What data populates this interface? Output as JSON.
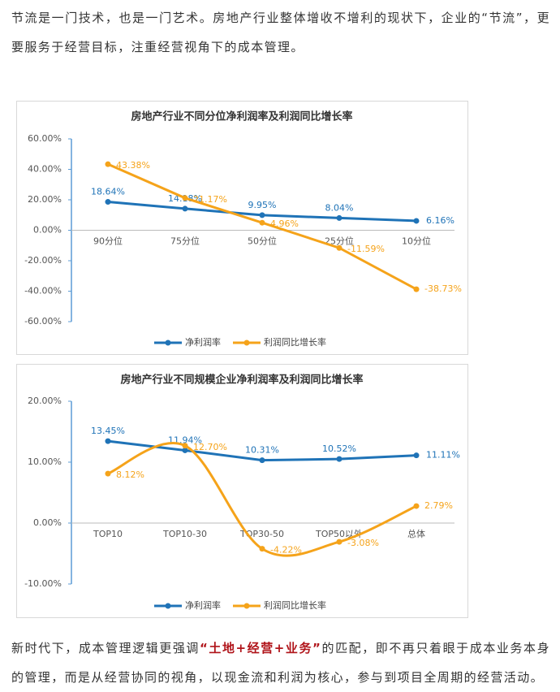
{
  "paragraphs": [
    {
      "text": "节流是一门技术，也是一门艺术。房地产行业整体增收不增利的现状下，企业的“节流”，更要服务于经营目标，注重经营视角下的成本管理。"
    },
    {
      "before": "新时代下，成本管理逻辑更强调",
      "highlight": "“土地+经营+业务”",
      "after": "的匹配，即不再只着眼于成本业务本身的管理，而是从经营协同的视角，以现金流和利润为核心，参与到项目全周期的经营活动。"
    }
  ],
  "chart_data": [
    {
      "type": "line",
      "title": "房地产行业不同分位净利润率及利润同比增长率",
      "categories": [
        "90分位",
        "75分位",
        "50分位",
        "25分位",
        "10分位"
      ],
      "ylim": [
        -60,
        60
      ],
      "yticks": [
        {
          "value": 60,
          "label": "60.00%"
        },
        {
          "value": 40,
          "label": "40.00%"
        },
        {
          "value": 20,
          "label": "20.00%"
        },
        {
          "value": 0,
          "label": "0.00%"
        },
        {
          "value": -20,
          "label": "-20.00%"
        },
        {
          "value": -40,
          "label": "-40.00%"
        },
        {
          "value": -60,
          "label": "-60.00%"
        }
      ],
      "legend": "bottom",
      "series": [
        {
          "name": "净利润率",
          "color": "#1f73b7",
          "smooth": false,
          "markers": true,
          "values": [
            18.64,
            14.18,
            9.95,
            8.04,
            6.16
          ],
          "value_labels": [
            "18.64%",
            "14.18%",
            "9.95%",
            "8.04%",
            "6.16%"
          ]
        },
        {
          "name": "利润同比增长率",
          "color": "#f5a31a",
          "smooth": false,
          "markers": true,
          "values": [
            43.38,
            21.17,
            4.96,
            -11.59,
            -38.73
          ],
          "value_labels": [
            "43.38%",
            "21.17%",
            "4.96%",
            "-11.59%",
            "-38.73%"
          ]
        }
      ]
    },
    {
      "type": "line",
      "title": "房地产行业不同规模企业净利润率及利润同比增长率",
      "categories": [
        "TOP10",
        "TOP10-30",
        "TOP30-50",
        "TOP50以外",
        "总体"
      ],
      "ylim": [
        -10,
        20
      ],
      "yticks": [
        {
          "value": 20,
          "label": "20.00%"
        },
        {
          "value": 10,
          "label": "10.00%"
        },
        {
          "value": 0,
          "label": "0.00%"
        },
        {
          "value": -10,
          "label": "-10.00%"
        }
      ],
      "legend": "bottom",
      "series": [
        {
          "name": "净利润率",
          "color": "#1f73b7",
          "smooth": false,
          "markers": true,
          "values": [
            13.45,
            11.94,
            10.31,
            10.52,
            11.11
          ],
          "value_labels": [
            "13.45%",
            "11.94%",
            "10.31%",
            "10.52%",
            "11.11%"
          ]
        },
        {
          "name": "利润同比增长率",
          "color": "#f5a31a",
          "smooth": true,
          "markers": true,
          "values": [
            8.12,
            12.7,
            -4.22,
            -3.08,
            2.79
          ],
          "value_labels": [
            "8.12%",
            "12.70%",
            "-4.22%",
            "-3.08%",
            "2.79%"
          ]
        }
      ]
    }
  ]
}
